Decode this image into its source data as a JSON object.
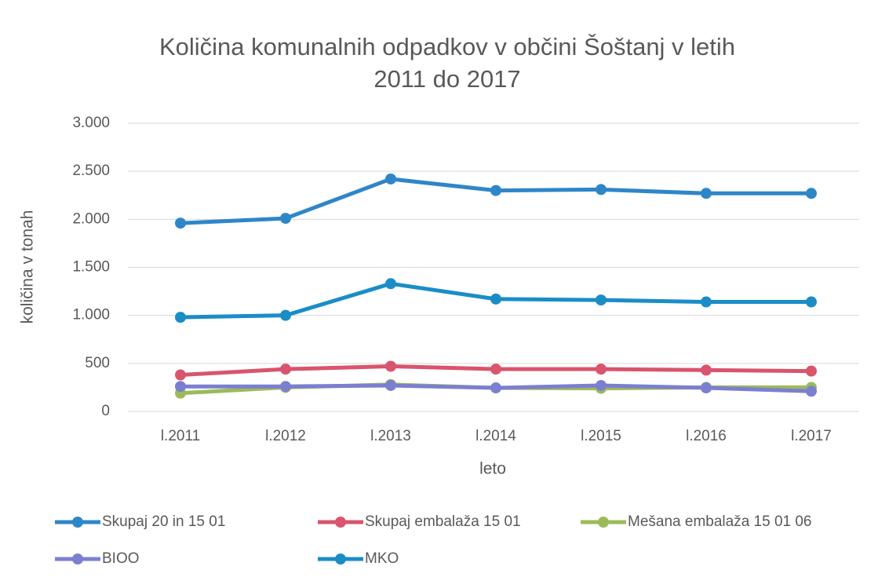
{
  "chart_data": {
    "type": "line",
    "title": "Količina komunalnih odpadkov v občini Šoštanj v letih",
    "subtitle": "2011 do 2017",
    "x_label": "leto",
    "y_label": "količina v tonah",
    "categories": [
      "l.2011",
      "l.2012",
      "l.2013",
      "l.2014",
      "l.2015",
      "l.2016",
      "l.2017"
    ],
    "series": [
      {
        "name": "Skupaj 20 in 15 01",
        "color": "#2e86c8",
        "values": [
          1960,
          2010,
          2420,
          2300,
          2310,
          2270,
          2270
        ]
      },
      {
        "name": "Skupaj embalaža 15 01",
        "color": "#d9546c",
        "values": [
          380,
          440,
          470,
          440,
          440,
          430,
          420
        ]
      },
      {
        "name": "Mešana embalaža 15 01 06",
        "color": "#9bbb59",
        "values": [
          190,
          250,
          280,
          245,
          240,
          250,
          250
        ]
      },
      {
        "name": "BIOO",
        "color": "#7b7fd0",
        "values": [
          260,
          260,
          270,
          245,
          270,
          245,
          210
        ]
      },
      {
        "name": "MKO",
        "color": "#1a8dc6",
        "values": [
          980,
          1000,
          1330,
          1170,
          1160,
          1140,
          1140
        ]
      }
    ],
    "ylim": [
      0,
      3000
    ],
    "yticks": [
      0,
      500,
      {
        "value": 1000,
        "label": "1.000"
      },
      {
        "value": 1500,
        "label": "1.500"
      },
      {
        "value": 2000,
        "label": "2.000"
      },
      {
        "value": 2500,
        "label": "2.500"
      },
      {
        "value": 3000,
        "label": "3.000"
      }
    ],
    "grid": true,
    "legend": "bottom"
  }
}
